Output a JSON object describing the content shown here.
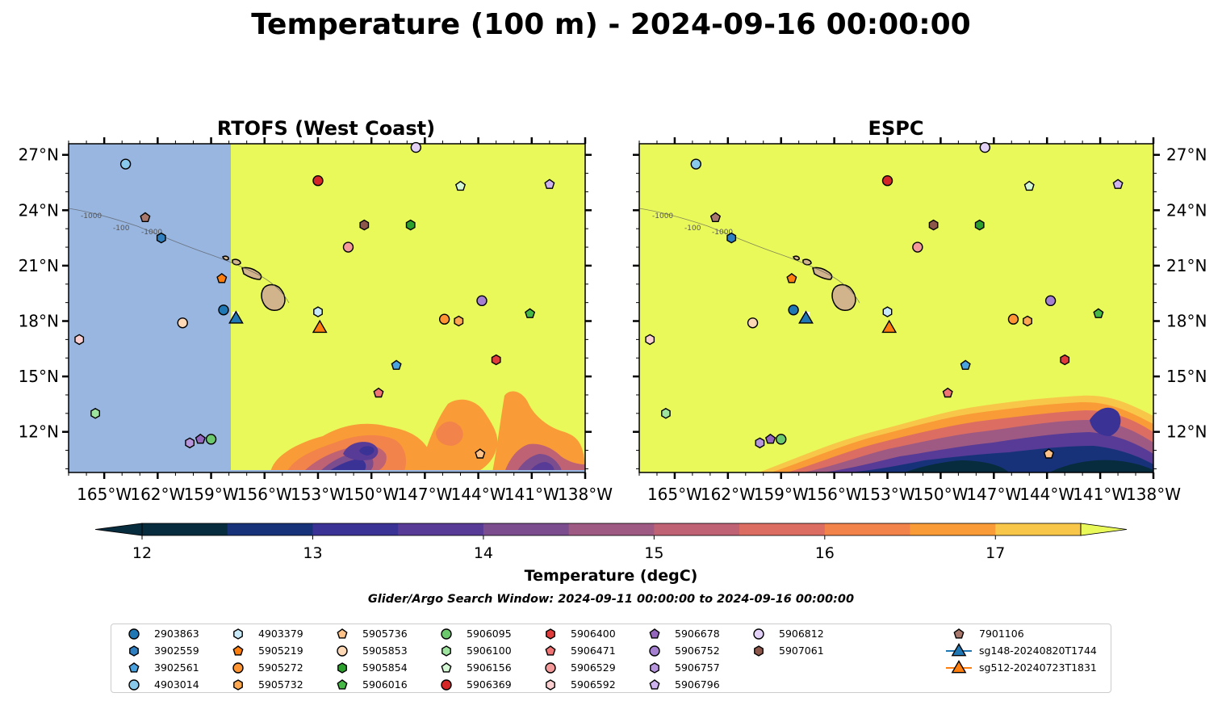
{
  "title": "Temperature (100 m) - 2024-09-16 00:00:00",
  "panels": [
    {
      "id": "rtofs",
      "title": "RTOFS (West Coast)"
    },
    {
      "id": "espc",
      "title": "ESPC"
    }
  ],
  "map": {
    "lon_range": [
      -167.0,
      -138.0
    ],
    "lat_range": [
      9.8,
      27.6
    ],
    "lon_ticks": [
      "165°W",
      "162°W",
      "159°W",
      "156°W",
      "153°W",
      "150°W",
      "147°W",
      "144°W",
      "141°W",
      "138°W"
    ],
    "lon_tick_values": [
      -165,
      -162,
      -159,
      -156,
      -153,
      -150,
      -147,
      -144,
      -141,
      -138
    ],
    "lat_ticks": [
      "27°N",
      "24°N",
      "21°N",
      "18°N",
      "15°N",
      "12°N"
    ],
    "lat_tick_values": [
      27,
      24,
      21,
      18,
      15,
      12
    ],
    "land_color": "#d2b48c",
    "warm_color": "#e9f95a",
    "nodata_color": "#98b6e0",
    "rtofs_domain_west_edge_lon": -157.8,
    "contour_labels": [
      "-1000",
      "-100"
    ]
  },
  "colorbar": {
    "label": "Temperature (degC)",
    "ticks": [
      "12",
      "13",
      "14",
      "15",
      "16",
      "17"
    ],
    "tick_values": [
      12,
      13,
      14,
      15,
      16,
      17
    ],
    "min": 11.75,
    "max": 17.75,
    "colors": [
      "#072c3e",
      "#18327a",
      "#3b3296",
      "#573b96",
      "#7b4d8e",
      "#9e5a82",
      "#bf6274",
      "#dc6d63",
      "#f2834a",
      "#f99b36",
      "#f8c648",
      "#e9f95a"
    ]
  },
  "search_window": "Glider/Argo Search Window: 2024-09-11 00:00:00 to 2024-09-16 00:00:00",
  "legend": [
    {
      "name": "2903863",
      "marker": "circle",
      "color": "#1f77b4"
    },
    {
      "name": "3902559",
      "marker": "hexagon",
      "color": "#2f7fc1"
    },
    {
      "name": "3902561",
      "marker": "pentagon",
      "color": "#4aa3df"
    },
    {
      "name": "4903014",
      "marker": "circle",
      "color": "#88c9ec"
    },
    {
      "name": "4903379",
      "marker": "hexagon",
      "color": "#c7e9f8"
    },
    {
      "name": "5905219",
      "marker": "pentagon",
      "color": "#ff7f0e"
    },
    {
      "name": "5905272",
      "marker": "circle",
      "color": "#ff9533"
    },
    {
      "name": "5905732",
      "marker": "hexagon",
      "color": "#ffa852"
    },
    {
      "name": "5905736",
      "marker": "pentagon",
      "color": "#ffc38a"
    },
    {
      "name": "5905853",
      "marker": "circle",
      "color": "#ffd9b5"
    },
    {
      "name": "5905854",
      "marker": "hexagon",
      "color": "#2ca02c"
    },
    {
      "name": "5906016",
      "marker": "pentagon",
      "color": "#45b845"
    },
    {
      "name": "5906095",
      "marker": "circle",
      "color": "#6cc86c"
    },
    {
      "name": "5906100",
      "marker": "hexagon",
      "color": "#9ee39e"
    },
    {
      "name": "5906156",
      "marker": "pentagon",
      "color": "#d4f7d4"
    },
    {
      "name": "5906369",
      "marker": "circle",
      "color": "#d62728"
    },
    {
      "name": "5906400",
      "marker": "hexagon",
      "color": "#e03c3c"
    },
    {
      "name": "5906471",
      "marker": "pentagon",
      "color": "#f07474"
    },
    {
      "name": "5906529",
      "marker": "circle",
      "color": "#f59a9a"
    },
    {
      "name": "5906592",
      "marker": "hexagon",
      "color": "#fcd0d0"
    },
    {
      "name": "5906678",
      "marker": "pentagon",
      "color": "#9467bd"
    },
    {
      "name": "5906752",
      "marker": "circle",
      "color": "#a57fd0"
    },
    {
      "name": "5906757",
      "marker": "hexagon",
      "color": "#b896de"
    },
    {
      "name": "5906796",
      "marker": "pentagon",
      "color": "#cfb3ee"
    },
    {
      "name": "5906812",
      "marker": "circle",
      "color": "#e3d1f7"
    },
    {
      "name": "5907061",
      "marker": "hexagon",
      "color": "#8c564b"
    },
    {
      "name": "7901106",
      "marker": "pentagon",
      "color": "#a8786c"
    },
    {
      "name": "sg148-20240820T1744",
      "marker": "triangle",
      "color": "#1f77b4"
    },
    {
      "name": "sg512-20240723T1831",
      "marker": "triangle",
      "color": "#ff7f0e"
    }
  ],
  "observations": [
    {
      "id": "2903863",
      "lon": -158.3,
      "lat": 18.6
    },
    {
      "id": "3902559",
      "lon": -161.8,
      "lat": 22.5
    },
    {
      "id": "3902561",
      "lon": -148.6,
      "lat": 15.6
    },
    {
      "id": "4903014",
      "lon": -163.8,
      "lat": 26.5
    },
    {
      "id": "4903379",
      "lon": -153.0,
      "lat": 18.5
    },
    {
      "id": "5905219",
      "lon": -158.4,
      "lat": 20.3
    },
    {
      "id": "5905272",
      "lon": -145.9,
      "lat": 18.1
    },
    {
      "id": "5905732",
      "lon": -145.1,
      "lat": 18.0
    },
    {
      "id": "5905736",
      "lon": -143.9,
      "lat": 10.8
    },
    {
      "id": "5905853",
      "lon": -160.6,
      "lat": 17.9
    },
    {
      "id": "5905854",
      "lon": -147.8,
      "lat": 23.2
    },
    {
      "id": "5906016",
      "lon": -141.1,
      "lat": 18.4
    },
    {
      "id": "5906095",
      "lon": -159.0,
      "lat": 11.6
    },
    {
      "id": "5906100",
      "lon": -165.5,
      "lat": 13.0
    },
    {
      "id": "5906156",
      "lon": -145.0,
      "lat": 25.3
    },
    {
      "id": "5906369",
      "lon": -153.0,
      "lat": 25.6
    },
    {
      "id": "5906400",
      "lon": -143.0,
      "lat": 15.9
    },
    {
      "id": "5906471",
      "lon": -149.6,
      "lat": 14.1
    },
    {
      "id": "5906529",
      "lon": -151.3,
      "lat": 22.0
    },
    {
      "id": "5906592",
      "lon": -166.4,
      "lat": 17.0
    },
    {
      "id": "5906678",
      "lon": -159.6,
      "lat": 11.6
    },
    {
      "id": "5906752",
      "lon": -143.8,
      "lat": 19.1
    },
    {
      "id": "5906757",
      "lon": -160.2,
      "lat": 11.4
    },
    {
      "id": "5906796",
      "lon": -140.0,
      "lat": 25.4
    },
    {
      "id": "5906812",
      "lon": -147.5,
      "lat": 27.4
    },
    {
      "id": "5907061",
      "lon": -150.4,
      "lat": 23.2
    },
    {
      "id": "7901106",
      "lon": -162.7,
      "lat": 23.6
    },
    {
      "id": "sg148-20240820T1744",
      "lon": -157.6,
      "lat": 18.1
    },
    {
      "id": "sg512-20240723T1831",
      "lon": -152.9,
      "lat": 17.6
    }
  ]
}
